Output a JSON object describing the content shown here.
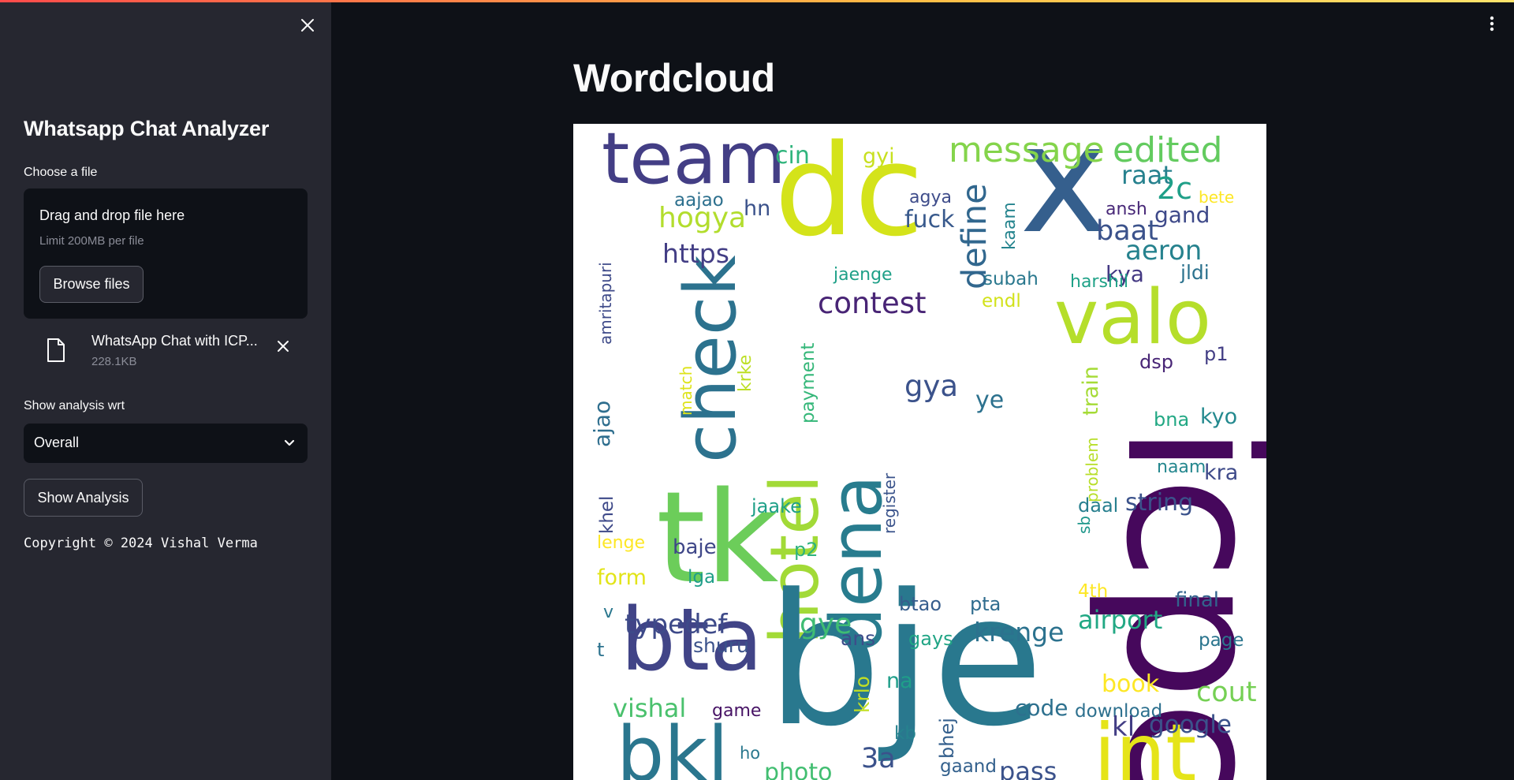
{
  "sidebar": {
    "title": "Whatsapp Chat Analyzer",
    "uploader_label": "Choose a file",
    "dropzone_title": "Drag and drop file here",
    "dropzone_limit": "Limit 200MB per file",
    "browse_label": "Browse files",
    "file_name": "WhatsApp Chat with ICP...",
    "file_size": "228.1KB",
    "select_label": "Show analysis wrt",
    "select_value": "Overall",
    "show_button": "Show Analysis",
    "copyright": "Copyright © 2024 Vishal Verma"
  },
  "main": {
    "title": "Wordcloud"
  },
  "wordcloud": {
    "colors": [
      "#440154",
      "#3b528b",
      "#21918c",
      "#5ec962",
      "#fde725"
    ],
    "words": [
      {
        "t": "hn",
        "c": "#3dbd72"
      },
      {
        "t": "dc",
        "c": "#d4e31a"
      },
      {
        "t": "x",
        "c": "#355f8d"
      },
      {
        "t": "team",
        "c": "#433e85"
      },
      {
        "t": "valo",
        "c": "#b5de2b"
      },
      {
        "t": "icpc",
        "c": "#46085c"
      },
      {
        "t": "check",
        "c": "#2c728e"
      },
      {
        "t": "tk",
        "c": "#6ccd5a"
      },
      {
        "t": "hotel",
        "c": "#a2da37"
      },
      {
        "t": "dena",
        "c": "#287c8e"
      },
      {
        "t": "bje",
        "c": "#29788e"
      },
      {
        "t": "bta",
        "c": "#414487"
      },
      {
        "t": "bkl",
        "c": "#2a768e"
      },
      {
        "t": "int",
        "c": "#e5e419"
      },
      {
        "t": "message",
        "c": "#84d44b"
      },
      {
        "t": "edited",
        "c": "#63cb5f"
      },
      {
        "t": "cin",
        "c": "#2fb47c"
      },
      {
        "t": "gyi",
        "c": "#c8e020"
      },
      {
        "t": "define",
        "c": "#31678e"
      },
      {
        "t": "raat",
        "c": "#26818e"
      },
      {
        "t": "2c",
        "c": "#1f9f88"
      },
      {
        "t": "bete",
        "c": "#fde725"
      },
      {
        "t": "aajao",
        "c": "#2d708e"
      },
      {
        "t": "hn",
        "c": "#3b528b"
      },
      {
        "t": "agya",
        "c": "#3e4c8a"
      },
      {
        "t": "ansh",
        "c": "#482878"
      },
      {
        "t": "gand",
        "c": "#3e4989"
      },
      {
        "t": "hogya",
        "c": "#b2dd2d"
      },
      {
        "t": "fuck",
        "c": "#38598c"
      },
      {
        "t": "kaam",
        "c": "#25848e"
      },
      {
        "t": "baat",
        "c": "#3b528b"
      },
      {
        "t": "aeron",
        "c": "#26828e"
      },
      {
        "t": "https",
        "c": "#433e85"
      },
      {
        "t": "kya",
        "c": "#443983"
      },
      {
        "t": "jaenge",
        "c": "#1fa088"
      },
      {
        "t": "subah",
        "c": "#2a788e"
      },
      {
        "t": "harshil",
        "c": "#1fa187"
      },
      {
        "t": "jldi",
        "c": "#2c728e"
      },
      {
        "t": "contest",
        "c": "#482475"
      },
      {
        "t": "endl",
        "c": "#d2e21b"
      },
      {
        "t": "amritapuri",
        "c": "#3e4a89"
      },
      {
        "t": "krke",
        "c": "#bddf26"
      },
      {
        "t": "match",
        "c": "#dde318"
      },
      {
        "t": "payment",
        "c": "#35b779"
      },
      {
        "t": "gya",
        "c": "#3b528b"
      },
      {
        "t": "train",
        "c": "#a5db36"
      },
      {
        "t": "dsp",
        "c": "#482576"
      },
      {
        "t": "p1",
        "c": "#433e85"
      },
      {
        "t": "ye",
        "c": "#2c718e"
      },
      {
        "t": "kyo",
        "c": "#23898e"
      },
      {
        "t": "bna",
        "c": "#22a884"
      },
      {
        "t": "ajao",
        "c": "#2e6e8e"
      },
      {
        "t": "register",
        "c": "#3a538b"
      },
      {
        "t": "problem",
        "c": "#b8de29"
      },
      {
        "t": "naam",
        "c": "#24878e"
      },
      {
        "t": "kra",
        "c": "#3e4a89"
      },
      {
        "t": "khel",
        "c": "#3e4989"
      },
      {
        "t": "jaake",
        "c": "#1fa088"
      },
      {
        "t": "daal",
        "c": "#277f8e"
      },
      {
        "t": "string",
        "c": "#3b528b"
      },
      {
        "t": "sb",
        "c": "#1f978b"
      },
      {
        "t": "lenge",
        "c": "#fde725"
      },
      {
        "t": "baje",
        "c": "#3f4788"
      },
      {
        "t": "p2",
        "c": "#2db27d"
      },
      {
        "t": "form",
        "c": "#e2e418"
      },
      {
        "t": "lga",
        "c": "#1f9e89"
      },
      {
        "t": "4th",
        "c": "#fde725"
      },
      {
        "t": "v",
        "c": "#2a778e"
      },
      {
        "t": "btao",
        "c": "#365d8d"
      },
      {
        "t": "pta",
        "c": "#2f6c8e"
      },
      {
        "t": "final",
        "c": "#33638d"
      },
      {
        "t": "typedef",
        "c": "#3e4a89"
      },
      {
        "t": "gye",
        "c": "#3fbc73"
      },
      {
        "t": "airport",
        "c": "#22a884"
      },
      {
        "t": "t",
        "c": "#2c728e"
      },
      {
        "t": "shuru",
        "c": "#3b528b"
      },
      {
        "t": "ans",
        "c": "#3d4d8a"
      },
      {
        "t": "gays",
        "c": "#21a585"
      },
      {
        "t": "krenge",
        "c": "#2c728e"
      },
      {
        "t": "page",
        "c": "#2b758e"
      },
      {
        "t": "na",
        "c": "#1f9e89"
      },
      {
        "t": "book",
        "c": "#fde725"
      },
      {
        "t": "cout",
        "c": "#75d054"
      },
      {
        "t": "vishal",
        "c": "#4ac16d"
      },
      {
        "t": "game",
        "c": "#471365"
      },
      {
        "t": "krlo",
        "c": "#c2df23"
      },
      {
        "t": "code",
        "c": "#2d708e"
      },
      {
        "t": "download",
        "c": "#2d708e"
      },
      {
        "t": "kl",
        "c": "#433e85"
      },
      {
        "t": "google",
        "c": "#3b528b"
      },
      {
        "t": "kb",
        "c": "#26828e"
      },
      {
        "t": "bhej",
        "c": "#35608d"
      },
      {
        "t": "3a",
        "c": "#3b528b"
      },
      {
        "t": "ho",
        "c": "#2a788e"
      },
      {
        "t": "photo",
        "c": "#42be71"
      },
      {
        "t": "gaand",
        "c": "#34618d"
      },
      {
        "t": "pass",
        "c": "#3b528b"
      }
    ]
  }
}
